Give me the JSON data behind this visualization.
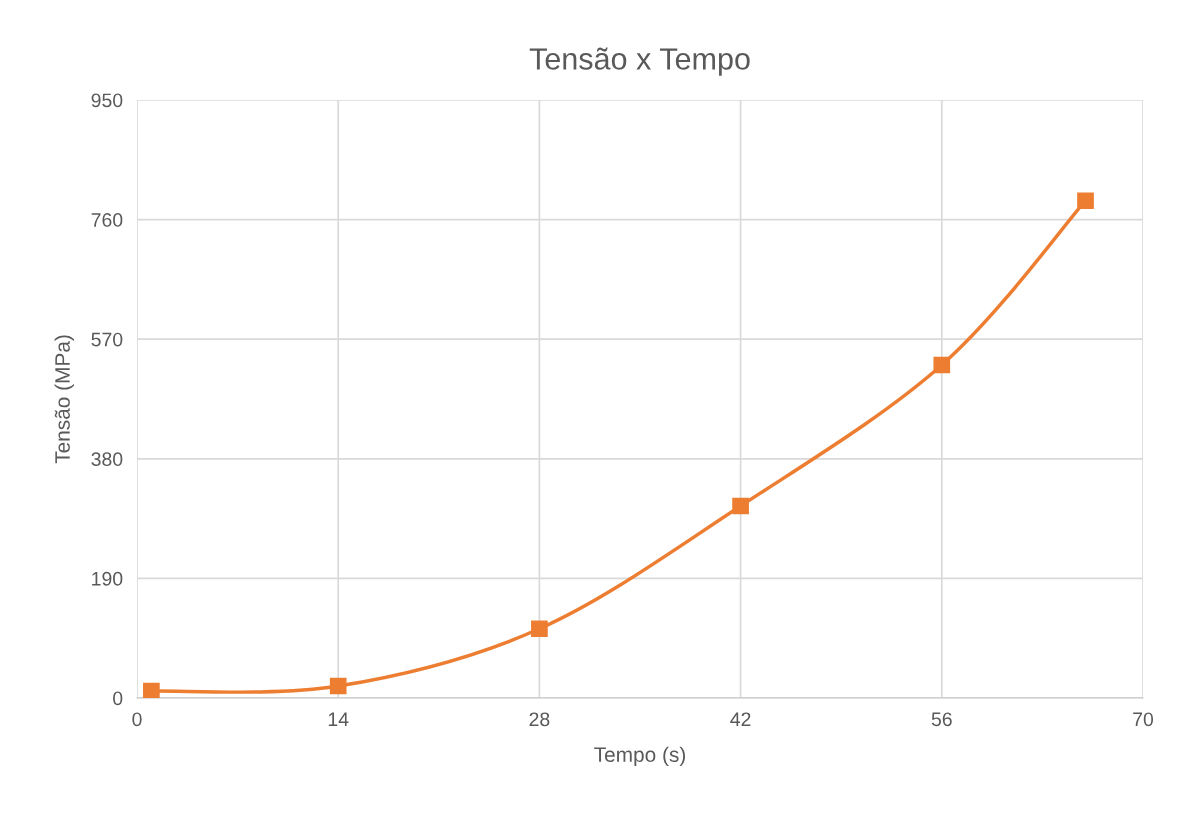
{
  "chart_data": {
    "type": "line",
    "title": "Tensão x Tempo",
    "xlabel": "Tempo (s)",
    "ylabel": "Tensão (MPa)",
    "x": [
      1,
      14,
      28,
      42,
      56,
      66
    ],
    "series": [
      {
        "color": "#ed7d31",
        "values": [
          11,
          19,
          110,
          305,
          529,
          790
        ]
      }
    ],
    "xlim": [
      0,
      70
    ],
    "xticks": [
      0,
      14,
      28,
      42,
      56,
      70
    ],
    "ylim": [
      0,
      950
    ],
    "yticks": [
      0,
      190,
      380,
      570,
      760,
      950
    ],
    "grid": true,
    "marker": "square",
    "line_style": "solid"
  }
}
